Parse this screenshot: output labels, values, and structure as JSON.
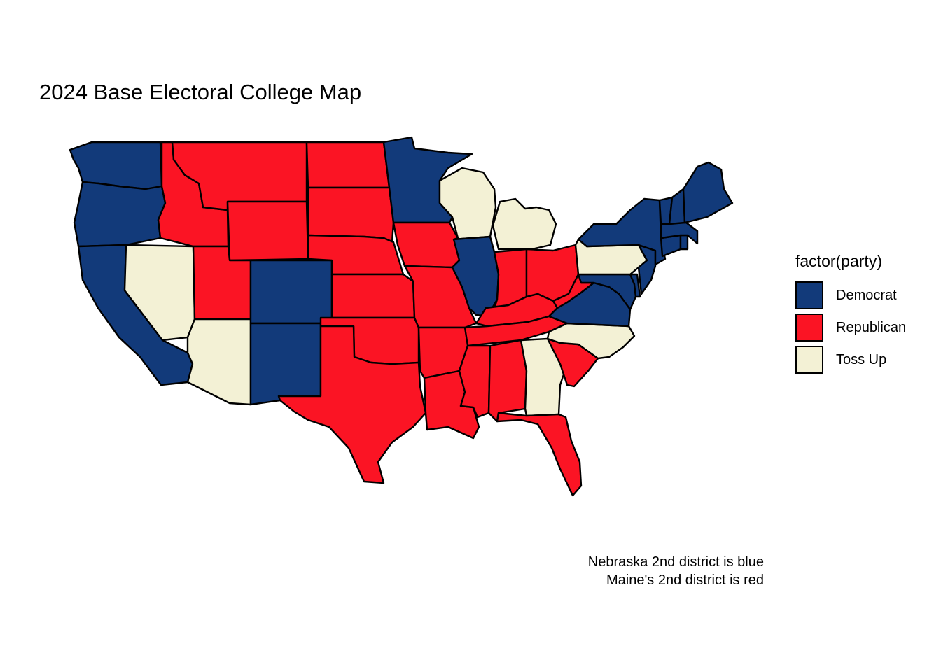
{
  "title": "2024 Base Electoral College Map",
  "legend": {
    "title": "factor(party)",
    "items": [
      {
        "label": "Democrat",
        "color": "#123A7A"
      },
      {
        "label": "Republican",
        "color": "#FB1424"
      },
      {
        "label": "Toss Up",
        "color": "#F3F1D5"
      }
    ]
  },
  "caption": {
    "line1": "Nebraska 2nd district is blue",
    "line2": "Maine's 2nd district is red"
  },
  "map_data": {
    "type": "choropleth",
    "region": "contiguous United States",
    "fill_by": "party",
    "states": {
      "Washington": "Democrat",
      "Oregon": "Democrat",
      "California": "Democrat",
      "Colorado": "Democrat",
      "New Mexico": "Democrat",
      "Minnesota": "Democrat",
      "Illinois": "Democrat",
      "Virginia": "Democrat",
      "Maryland": "Democrat",
      "Delaware": "Democrat",
      "New Jersey": "Democrat",
      "New York": "Democrat",
      "Connecticut": "Democrat",
      "Rhode Island": "Democrat",
      "Massachusetts": "Democrat",
      "Vermont": "Democrat",
      "New Hampshire": "Democrat",
      "Maine": "Democrat",
      "Idaho": "Republican",
      "Montana": "Republican",
      "Wyoming": "Republican",
      "Utah": "Republican",
      "North Dakota": "Republican",
      "South Dakota": "Republican",
      "Nebraska": "Republican",
      "Kansas": "Republican",
      "Oklahoma": "Republican",
      "Texas": "Republican",
      "Iowa": "Republican",
      "Missouri": "Republican",
      "Arkansas": "Republican",
      "Louisiana": "Republican",
      "Mississippi": "Republican",
      "Alabama": "Republican",
      "Tennessee": "Republican",
      "Kentucky": "Republican",
      "Indiana": "Republican",
      "Ohio": "Republican",
      "West Virginia": "Republican",
      "South Carolina": "Republican",
      "Florida": "Republican",
      "Nevada": "Toss Up",
      "Arizona": "Toss Up",
      "Wisconsin": "Toss Up",
      "Michigan": "Toss Up",
      "Pennsylvania": "Toss Up",
      "North Carolina": "Toss Up",
      "Georgia": "Toss Up"
    }
  }
}
